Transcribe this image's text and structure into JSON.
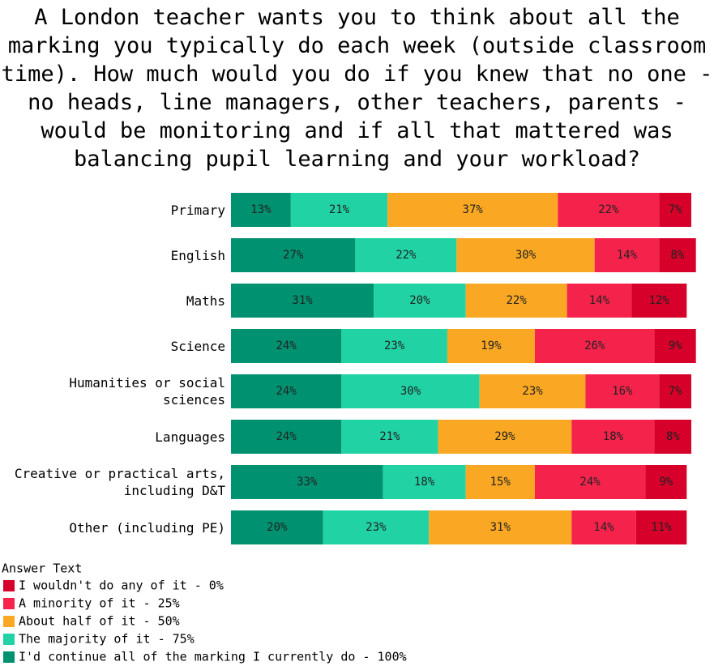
{
  "chart_data": {
    "type": "stacked-bar-horizontal",
    "title": "A London teacher wants you to think about all the marking you typically do each week (outside classroom time). How much would you do if you knew that no one - no heads, line managers, other teachers, parents - would be monitoring and if all that mattered was balancing pupil learning and your workload?",
    "categories": [
      "Primary",
      "English",
      "Maths",
      "Science",
      "Humanities or social sciences",
      "Languages",
      "Creative or practical arts, including D&T",
      "Other (including PE)"
    ],
    "legend_title": "Answer Text",
    "series": [
      {
        "name": "I'd continue all of the marking I currently do - 100%",
        "color": "#009170",
        "values": [
          13,
          27,
          31,
          24,
          24,
          24,
          33,
          20
        ],
        "value_labels": [
          "13%",
          "27%",
          "31%",
          "24%",
          "24%",
          "24%",
          "33%",
          "20%"
        ]
      },
      {
        "name": "The majority of it - 75%",
        "color": "#21d2a4",
        "values": [
          21,
          22,
          20,
          23,
          30,
          21,
          18,
          23
        ],
        "value_labels": [
          "21%",
          "22%",
          "20%",
          "23%",
          "30%",
          "21%",
          "18%",
          "23%"
        ]
      },
      {
        "name": "About half of it - 50%",
        "color": "#faa823",
        "values": [
          37,
          30,
          22,
          19,
          23,
          29,
          15,
          31
        ],
        "value_labels": [
          "37%",
          "30%",
          "22%",
          "19%",
          "23%",
          "29%",
          "15%",
          "31%"
        ]
      },
      {
        "name": "A minority of it - 25%",
        "color": "#f5234b",
        "values": [
          22,
          14,
          14,
          26,
          16,
          18,
          24,
          14
        ],
        "value_labels": [
          "22%",
          "14%",
          "14%",
          "26%",
          "16%",
          "18%",
          "24%",
          "14%"
        ]
      },
      {
        "name": "I wouldn't do any of it - 0%",
        "color": "#d6002a",
        "values": [
          7,
          8,
          12,
          9,
          7,
          8,
          9,
          11
        ],
        "value_labels": [
          "7%",
          "8%",
          "12%",
          "9%",
          "7%",
          "8%",
          "9%",
          "11%"
        ]
      }
    ]
  }
}
